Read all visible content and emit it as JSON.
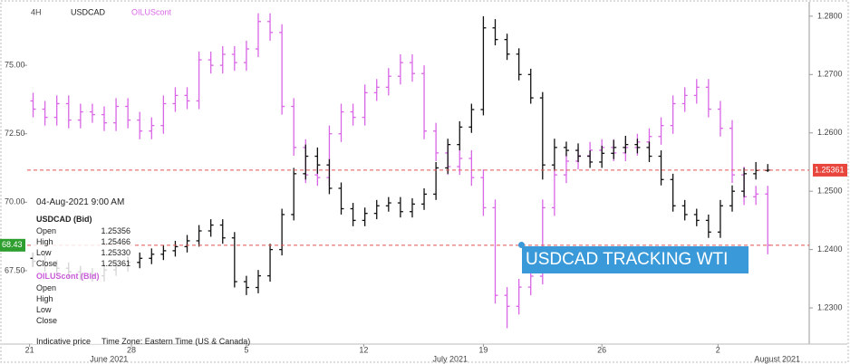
{
  "chart_data": {
    "type": "ohlc",
    "timeframe": "4H",
    "xlim": [
      0,
      66
    ],
    "xticks": [
      {
        "value": 0.2,
        "label": "21"
      },
      {
        "value": 8.8,
        "label": "28"
      },
      {
        "value": 18.5,
        "label": "5"
      },
      {
        "value": 28.4,
        "label": "12"
      },
      {
        "value": 38.5,
        "label": "19"
      },
      {
        "value": 48.5,
        "label": "26"
      },
      {
        "value": 58.3,
        "label": "2"
      }
    ],
    "month_labels": [
      {
        "value": 6.9,
        "label": "June 2021"
      },
      {
        "value": 35.7,
        "label": "July 2021"
      },
      {
        "value": 63.3,
        "label": "August 2021"
      }
    ],
    "ylim": [
      64.82,
      77.22
    ],
    "yticks": [
      {
        "value": 67.5,
        "label": "67.50"
      },
      {
        "value": 70,
        "label": "70.00"
      },
      {
        "value": 72.5,
        "label": "72.50"
      },
      {
        "value": 75,
        "label": "75.00"
      }
    ],
    "y2lim": [
      1.2238,
      1.282
    ],
    "y2ticks": [
      {
        "value": 1.23,
        "label": "1.2300"
      },
      {
        "value": 1.24,
        "label": "1.2400"
      },
      {
        "value": 1.25,
        "label": "1.2500"
      },
      {
        "value": 1.26,
        "label": "1.2600"
      },
      {
        "value": 1.27,
        "label": "1.2700"
      },
      {
        "value": 1.28,
        "label": "1.2800"
      }
    ],
    "series": [
      {
        "name": "USDCAD",
        "color": "#111111",
        "axis": "y2",
        "values": [
          [
            1.2385,
            1.2395,
            1.237,
            1.238
          ],
          [
            1.238,
            1.239,
            1.2362,
            1.2372
          ],
          [
            1.2372,
            1.2382,
            1.2358,
            1.2368
          ],
          [
            1.2368,
            1.2378,
            1.2352,
            1.2362
          ],
          [
            1.2362,
            1.2372,
            1.2348,
            1.2358
          ],
          [
            1.2358,
            1.2368,
            1.2345,
            1.2355
          ],
          [
            1.2355,
            1.2375,
            1.2345,
            1.2365
          ],
          [
            1.2365,
            1.2382,
            1.2355,
            1.2372
          ],
          [
            1.2372,
            1.2388,
            1.2362,
            1.2378
          ],
          [
            1.2378,
            1.2395,
            1.2368,
            1.2385
          ],
          [
            1.2385,
            1.2402,
            1.2375,
            1.2392
          ],
          [
            1.2392,
            1.2408,
            1.2382,
            1.2398
          ],
          [
            1.2398,
            1.2415,
            1.2388,
            1.2405
          ],
          [
            1.2405,
            1.2425,
            1.2395,
            1.2415
          ],
          [
            1.2415,
            1.2442,
            1.2405,
            1.2432
          ],
          [
            1.2432,
            1.2452,
            1.2422,
            1.2442
          ],
          [
            1.2442,
            1.2452,
            1.241,
            1.242
          ],
          [
            1.242,
            1.243,
            1.2335,
            1.2345
          ],
          [
            1.2345,
            1.2355,
            1.2322,
            1.2335
          ],
          [
            1.2335,
            1.2365,
            1.2325,
            1.2355
          ],
          [
            1.2355,
            1.241,
            1.2345,
            1.24
          ],
          [
            1.24,
            1.247,
            1.239,
            1.246
          ],
          [
            1.246,
            1.254,
            1.245,
            1.253
          ],
          [
            1.253,
            1.258,
            1.252,
            1.256
          ],
          [
            1.256,
            1.2575,
            1.253,
            1.2545
          ],
          [
            1.2545,
            1.2555,
            1.2495,
            1.2505
          ],
          [
            1.2505,
            1.2515,
            1.246,
            1.247
          ],
          [
            1.247,
            1.248,
            1.244,
            1.245
          ],
          [
            1.245,
            1.2472,
            1.244,
            1.2462
          ],
          [
            1.2462,
            1.2485,
            1.2452,
            1.2475
          ],
          [
            1.2475,
            1.249,
            1.2465,
            1.248
          ],
          [
            1.248,
            1.249,
            1.2455,
            1.2465
          ],
          [
            1.2465,
            1.2488,
            1.2455,
            1.2478
          ],
          [
            1.2478,
            1.2505,
            1.2468,
            1.2495
          ],
          [
            1.2495,
            1.255,
            1.2485,
            1.254
          ],
          [
            1.254,
            1.259,
            1.253,
            1.258
          ],
          [
            1.258,
            1.262,
            1.257,
            1.261
          ],
          [
            1.261,
            1.265,
            1.26,
            1.264
          ],
          [
            1.264,
            1.28,
            1.263,
            1.278
          ],
          [
            1.278,
            1.2795,
            1.275,
            1.276
          ],
          [
            1.276,
            1.277,
            1.2725,
            1.2735
          ],
          [
            1.2735,
            1.2745,
            1.269,
            1.27
          ],
          [
            1.27,
            1.271,
            1.265,
            1.266
          ],
          [
            1.266,
            1.267,
            1.252,
            1.2545
          ],
          [
            1.2545,
            1.259,
            1.2535,
            1.2575
          ],
          [
            1.2575,
            1.2585,
            1.256,
            1.257
          ],
          [
            1.257,
            1.2582,
            1.255,
            1.256
          ],
          [
            1.256,
            1.257,
            1.254,
            1.255
          ],
          [
            1.255,
            1.2578,
            1.254,
            1.2565
          ],
          [
            1.2565,
            1.2588,
            1.2555,
            1.2575
          ],
          [
            1.2575,
            1.2595,
            1.2565,
            1.258
          ],
          [
            1.258,
            1.259,
            1.2565,
            1.2575
          ],
          [
            1.2575,
            1.2585,
            1.255,
            1.256
          ],
          [
            1.256,
            1.257,
            1.251,
            1.252
          ],
          [
            1.252,
            1.253,
            1.2465,
            1.2475
          ],
          [
            1.2475,
            1.2485,
            1.245,
            1.246
          ],
          [
            1.246,
            1.247,
            1.244,
            1.245
          ],
          [
            1.245,
            1.246,
            1.242,
            1.243
          ],
          [
            1.243,
            1.2485,
            1.242,
            1.2475
          ],
          [
            1.2475,
            1.251,
            1.2465,
            1.25
          ],
          [
            1.25,
            1.254,
            1.249,
            1.253
          ],
          [
            1.253,
            1.255,
            1.252,
            1.25356
          ],
          [
            1.25356,
            1.25466,
            1.2533,
            1.25361
          ]
        ]
      },
      {
        "name": "OILUScont",
        "color": "#d966e6",
        "axis": "y",
        "values": [
          [
            73.7,
            74.0,
            73.1,
            73.4
          ],
          [
            73.4,
            73.7,
            72.8,
            73.1
          ],
          [
            73.1,
            73.9,
            72.8,
            73.6
          ],
          [
            73.6,
            73.9,
            72.7,
            73.0
          ],
          [
            73.0,
            73.6,
            72.7,
            73.3
          ],
          [
            73.3,
            73.6,
            72.9,
            73.2
          ],
          [
            73.2,
            73.5,
            72.6,
            72.9
          ],
          [
            72.9,
            73.8,
            72.6,
            73.5
          ],
          [
            73.5,
            73.8,
            72.7,
            73.0
          ],
          [
            73.0,
            73.3,
            72.3,
            72.6
          ],
          [
            72.6,
            73.1,
            72.3,
            72.8
          ],
          [
            72.8,
            73.9,
            72.5,
            73.6
          ],
          [
            73.6,
            74.2,
            73.3,
            73.9
          ],
          [
            73.9,
            74.2,
            73.4,
            73.7
          ],
          [
            73.7,
            75.5,
            73.4,
            75.2
          ],
          [
            75.2,
            75.5,
            74.7,
            75.0
          ],
          [
            75.0,
            75.7,
            74.7,
            75.4
          ],
          [
            75.4,
            75.7,
            74.8,
            75.1
          ],
          [
            75.1,
            75.9,
            74.8,
            75.6
          ],
          [
            75.6,
            76.9,
            75.3,
            76.6
          ],
          [
            76.6,
            76.9,
            75.9,
            76.2
          ],
          [
            76.2,
            76.5,
            73.2,
            73.5
          ],
          [
            73.5,
            73.8,
            71.7,
            72.0
          ],
          [
            72.0,
            72.3,
            70.7,
            71.0
          ],
          [
            71.0,
            71.3,
            70.6,
            70.9
          ],
          [
            70.9,
            72.8,
            70.6,
            72.5
          ],
          [
            72.5,
            73.6,
            72.2,
            73.3
          ],
          [
            73.3,
            73.6,
            72.8,
            73.1
          ],
          [
            73.1,
            74.3,
            72.8,
            74.0
          ],
          [
            74.0,
            74.5,
            73.7,
            74.2
          ],
          [
            74.2,
            74.9,
            73.9,
            74.6
          ],
          [
            74.6,
            75.4,
            74.3,
            75.1
          ],
          [
            75.1,
            75.4,
            74.4,
            74.7
          ],
          [
            74.7,
            75.0,
            72.3,
            72.6
          ],
          [
            72.6,
            72.9,
            71.5,
            71.8
          ],
          [
            71.8,
            72.1,
            71.0,
            71.3
          ],
          [
            71.3,
            71.9,
            71.0,
            71.6
          ],
          [
            71.6,
            71.9,
            70.6,
            70.9
          ],
          [
            70.9,
            71.2,
            69.5,
            69.8
          ],
          [
            69.8,
            70.1,
            66.3,
            66.6
          ],
          [
            66.6,
            66.9,
            65.4,
            66.2
          ],
          [
            66.2,
            67.2,
            65.9,
            66.9
          ],
          [
            66.9,
            67.6,
            66.6,
            67.3
          ],
          [
            67.3,
            70.1,
            67.0,
            69.8
          ],
          [
            69.8,
            71.3,
            69.5,
            71.0
          ],
          [
            71.0,
            71.8,
            70.7,
            71.5
          ],
          [
            71.5,
            72.0,
            71.2,
            71.7
          ],
          [
            71.7,
            72.2,
            71.4,
            71.9
          ],
          [
            71.9,
            72.3,
            71.6,
            72.0
          ],
          [
            72.0,
            72.3,
            71.5,
            71.8
          ],
          [
            71.8,
            72.3,
            71.5,
            72.0
          ],
          [
            72.0,
            72.5,
            71.7,
            72.2
          ],
          [
            72.2,
            72.7,
            71.9,
            72.4
          ],
          [
            72.4,
            73.1,
            72.1,
            72.8
          ],
          [
            72.8,
            73.9,
            72.5,
            73.6
          ],
          [
            73.6,
            74.2,
            73.3,
            73.9
          ],
          [
            73.9,
            74.5,
            73.6,
            74.2
          ],
          [
            74.2,
            74.5,
            73.1,
            73.4
          ],
          [
            73.4,
            73.7,
            72.4,
            72.7
          ],
          [
            72.7,
            73.0,
            70.7,
            71.0
          ],
          [
            71.0,
            71.3,
            69.9,
            70.2
          ],
          [
            70.2,
            70.6,
            69.9,
            70.3
          ],
          [
            70.3,
            70.6,
            68.1,
            68.43
          ]
        ]
      }
    ],
    "last_price_labels": [
      {
        "axis": "y2",
        "value": 1.25361,
        "label": "1.25361",
        "color": "#e8453c"
      },
      {
        "axis": "y",
        "value": 68.43,
        "label": "68.43",
        "color": "#2e9e2e"
      }
    ],
    "annotation": "USDCAD TRACKING WTI",
    "tooltip": {
      "time": "04-Aug-2021 9:00 AM",
      "sections": [
        {
          "title": "USDCAD (Bid)",
          "rows": [
            [
              "Open",
              "1.25356"
            ],
            [
              "High",
              "1.25466"
            ],
            [
              "Low",
              "1.25330"
            ],
            [
              "Close",
              "1.25361"
            ]
          ]
        },
        {
          "title": "OILUScont (Bid)",
          "rows": [
            [
              "Open"
            ],
            [
              "High"
            ],
            [
              "Low"
            ],
            [
              "Close"
            ]
          ]
        }
      ],
      "footer": [
        "Indicative price",
        "Time Zone: Eastern Time (US & Canada)"
      ]
    }
  }
}
